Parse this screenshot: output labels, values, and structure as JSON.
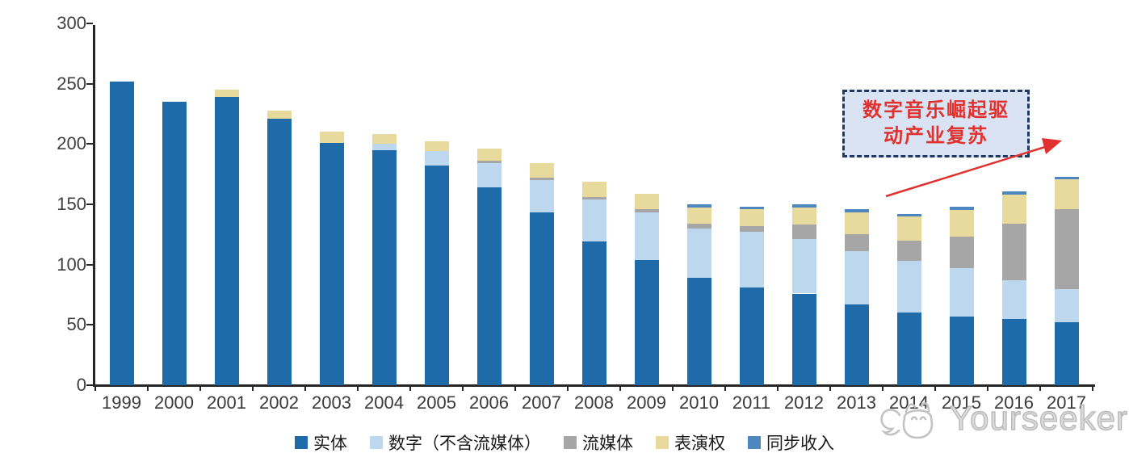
{
  "watermark": {
    "brand": "Yourseeker",
    "icon": "cat-logo-icon"
  },
  "annotation": {
    "line1": "数字音乐崛起驱",
    "line2": "动产业复苏",
    "text_color": "#e0312e",
    "box_fill": "#d9e3f3",
    "box_border": "#1f3864",
    "arrow_color": "#e0312e"
  },
  "chart_data": {
    "type": "bar",
    "stacked": true,
    "title": "",
    "xlabel": "",
    "ylabel": "",
    "grid": false,
    "legend_position": "bottom",
    "ylim": [
      0,
      300
    ],
    "yticks": [
      0,
      50,
      100,
      150,
      200,
      250,
      300
    ],
    "categories": [
      "1999",
      "2000",
      "2001",
      "2002",
      "2003",
      "2004",
      "2005",
      "2006",
      "2007",
      "2008",
      "2009",
      "2010",
      "2011",
      "2012",
      "2013",
      "2014",
      "2015",
      "2016",
      "2017"
    ],
    "series": [
      {
        "name": "实体",
        "color": "#1F6BA9",
        "values": [
          252,
          235,
          239,
          221,
          201,
          195,
          182,
          164,
          143,
          119,
          104,
          89,
          81,
          76,
          67,
          60,
          57,
          55,
          52
        ]
      },
      {
        "name": "数字（不含流媒体）",
        "color": "#BDD7EE",
        "values": [
          0,
          0,
          0,
          0,
          0,
          5,
          12,
          20,
          27,
          35,
          39,
          41,
          46,
          45,
          44,
          43,
          40,
          32,
          28
        ]
      },
      {
        "name": "流媒体",
        "color": "#A6A6A6",
        "values": [
          0,
          0,
          0,
          0,
          0,
          0,
          0,
          2,
          2,
          2,
          3,
          4,
          5,
          12,
          14,
          17,
          26,
          47,
          66
        ]
      },
      {
        "name": "表演权",
        "color": "#E8DA9D",
        "values": [
          0,
          0,
          6,
          7,
          9,
          8,
          8,
          10,
          12,
          13,
          13,
          13,
          14,
          14,
          18,
          20,
          22,
          24,
          25
        ]
      },
      {
        "name": "同步收入",
        "color": "#4E86C0",
        "values": [
          0,
          0,
          0,
          0,
          0,
          0,
          0,
          0,
          0,
          0,
          0,
          3,
          2,
          3,
          3,
          2,
          3,
          3,
          2
        ]
      }
    ]
  }
}
